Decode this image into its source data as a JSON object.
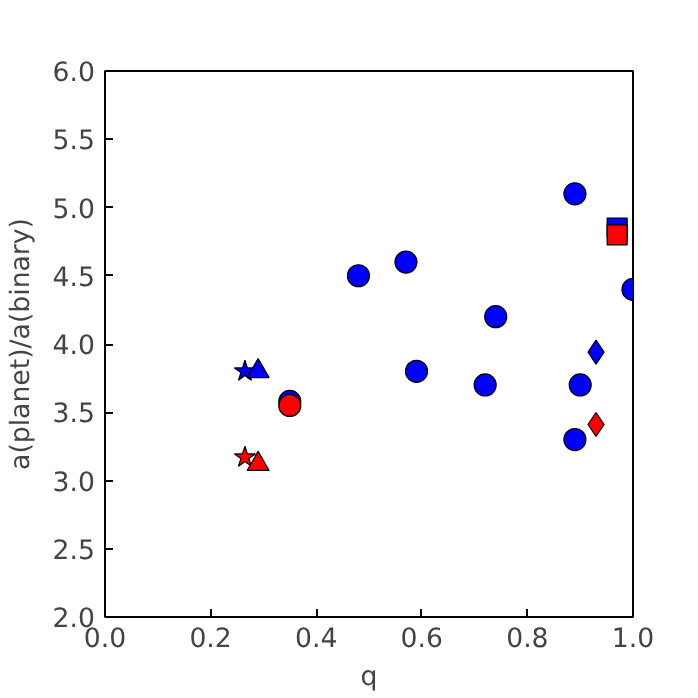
{
  "chart_data": {
    "type": "scatter",
    "xlabel": "q",
    "ylabel": "a(planet)/a(binary)",
    "xlim": [
      0,
      1
    ],
    "ylim": [
      2,
      6
    ],
    "xticks": [
      {
        "value": 0,
        "label": "0.0"
      },
      0.2,
      0.4,
      0.6,
      0.8,
      {
        "value": 1,
        "label": "1.0"
      }
    ],
    "yticks": [
      {
        "value": 2,
        "label": "2.0"
      },
      2.5,
      {
        "value": 3,
        "label": "3.0"
      },
      3.5,
      {
        "value": 4,
        "label": "4.0"
      },
      4.5,
      {
        "value": 5,
        "label": "5.0"
      },
      5.5,
      {
        "value": 6,
        "label": "6.0"
      }
    ],
    "grid": false,
    "series": [
      {
        "color": "#0000ff",
        "marker": "circle",
        "x": [
          0.48,
          0.57,
          0.59,
          0.72,
          0.74,
          0.89,
          0.9,
          0.89,
          1.0,
          0.35
        ],
        "values": [
          4.5,
          4.6,
          3.8,
          3.7,
          4.2,
          5.1,
          3.7,
          3.3,
          4.4,
          3.58
        ]
      },
      {
        "color": "#ff0000",
        "marker": "circle",
        "x": [
          0.35
        ],
        "values": [
          3.55
        ]
      },
      {
        "color": "#0000ff",
        "marker": "star",
        "x": [
          0.265
        ],
        "values": [
          3.8
        ]
      },
      {
        "color": "#ff0000",
        "marker": "star",
        "x": [
          0.265
        ],
        "values": [
          3.17
        ]
      },
      {
        "color": "#0000ff",
        "marker": "triangle",
        "x": [
          0.29
        ],
        "values": [
          3.8
        ]
      },
      {
        "color": "#ff0000",
        "marker": "triangle",
        "x": [
          0.29
        ],
        "values": [
          3.12
        ]
      },
      {
        "color": "#0000ff",
        "marker": "diamond",
        "x": [
          0.93
        ],
        "values": [
          3.94
        ]
      },
      {
        "color": "#ff0000",
        "marker": "diamond",
        "x": [
          0.93
        ],
        "values": [
          3.41
        ]
      },
      {
        "color": "#0000ff",
        "marker": "square",
        "x": [
          0.97
        ],
        "values": [
          4.85
        ]
      },
      {
        "color": "#ff0000",
        "marker": "square",
        "x": [
          0.97
        ],
        "values": [
          4.8
        ]
      }
    ]
  }
}
